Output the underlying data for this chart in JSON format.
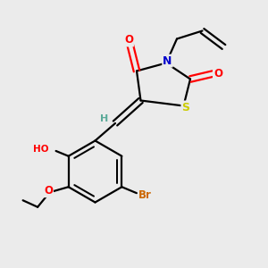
{
  "background_color": "#ebebeb",
  "bond_color": "#000000",
  "atom_colors": {
    "O": "#ff0000",
    "N": "#0000cc",
    "S": "#cccc00",
    "Br": "#cc6600",
    "H_teal": "#5aaa99",
    "C": "#000000"
  },
  "figsize": [
    3.0,
    3.0
  ],
  "dpi": 100,
  "lw": 1.6
}
